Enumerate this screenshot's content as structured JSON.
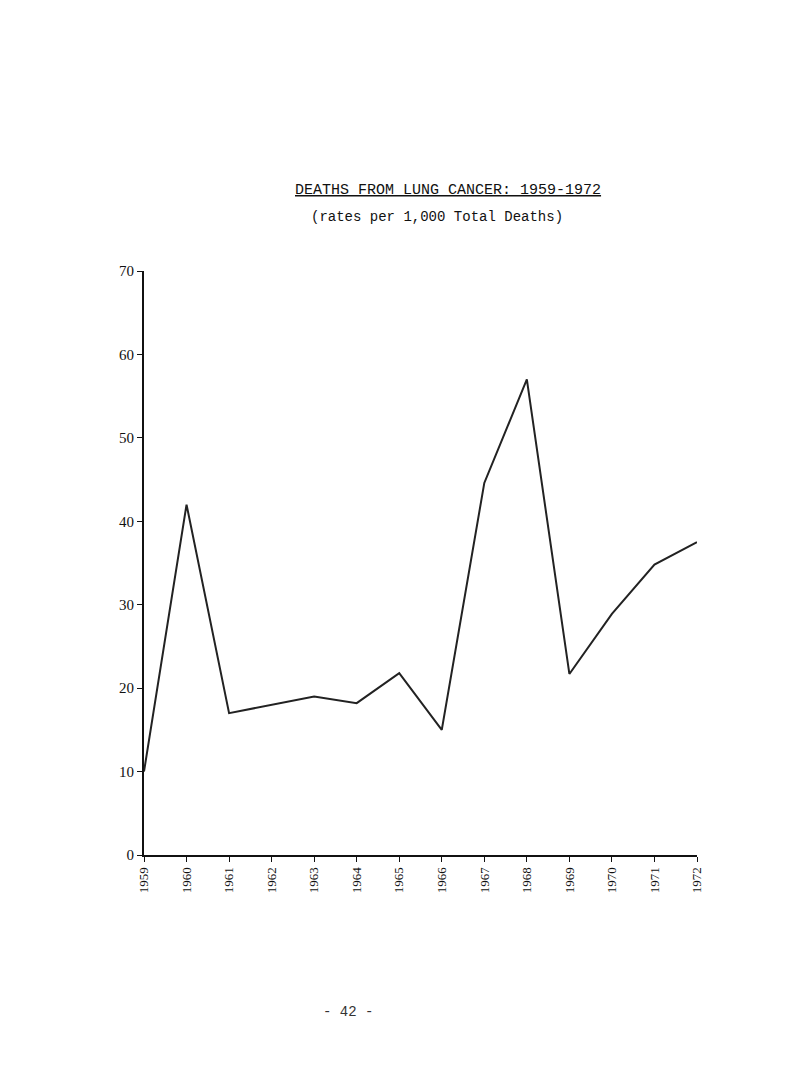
{
  "chart_data": {
    "type": "line",
    "title": "DEATHS FROM LUNG CANCER: 1959-1972",
    "subtitle": "(rates per 1,000 Total Deaths)",
    "annotations": [
      "- 42 -"
    ],
    "x": [
      1959,
      1960,
      1961,
      1962,
      1963,
      1964,
      1965,
      1966,
      1967,
      1968,
      1969,
      1970,
      1971,
      1972
    ],
    "values": [
      10,
      42,
      17,
      18,
      19,
      18.2,
      21.8,
      15,
      44.6,
      57,
      21.7,
      28.9,
      34.8,
      37.5
    ],
    "color": "#222222",
    "xlim": [
      1959,
      1972
    ],
    "xticks": [
      1959,
      1960,
      1961,
      1962,
      1963,
      1964,
      1965,
      1966,
      1967,
      1968,
      1969,
      1970,
      1971,
      1972
    ],
    "ylim": [
      0,
      70
    ],
    "yticks": [
      0,
      10,
      20,
      30,
      40,
      50,
      60,
      70
    ],
    "grid": false
  }
}
